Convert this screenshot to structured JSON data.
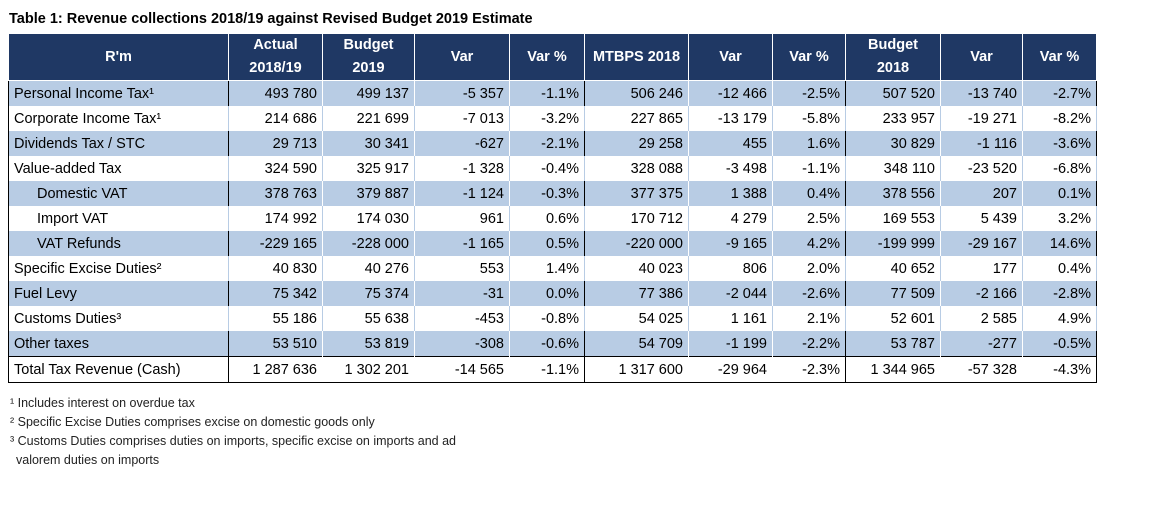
{
  "title": "Table 1: Revenue collections 2018/19 against Revised Budget 2019 Estimate",
  "table": {
    "header": [
      "R'm",
      "Actual 2018/19",
      "Budget 2019",
      "Var",
      "Var %",
      "MTBPS 2018",
      "Var",
      "Var %",
      "Budget 2018",
      "Var",
      "Var %"
    ],
    "rows": [
      [
        "Personal Income Tax¹",
        "493 780",
        "499 137",
        "-5 357",
        "-1.1%",
        "506 246",
        "-12 466",
        "-2.5%",
        "507 520",
        "-13 740",
        "-2.7%"
      ],
      [
        "Corporate Income Tax¹",
        "214 686",
        "221 699",
        "-7 013",
        "-3.2%",
        "227 865",
        "-13 179",
        "-5.8%",
        "233 957",
        "-19 271",
        "-8.2%"
      ],
      [
        "Dividends Tax / STC",
        "29 713",
        "30 341",
        "-627",
        "-2.1%",
        "29 258",
        "455",
        "1.6%",
        "30 829",
        "-1 116",
        "-3.6%"
      ],
      [
        "Value-added Tax",
        "324 590",
        "325 917",
        "-1 328",
        "-0.4%",
        "328 088",
        "-3 498",
        "-1.1%",
        "348 110",
        "-23 520",
        "-6.8%"
      ],
      [
        "Domestic VAT",
        "378 763",
        "379 887",
        "-1 124",
        "-0.3%",
        "377 375",
        "1 388",
        "0.4%",
        "378 556",
        "207",
        "0.1%"
      ],
      [
        "Import VAT",
        "174 992",
        "174 030",
        "961",
        "0.6%",
        "170 712",
        "4 279",
        "2.5%",
        "169 553",
        "5 439",
        "3.2%"
      ],
      [
        "VAT Refunds",
        "-229 165",
        "-228 000",
        "-1 165",
        "0.5%",
        "-220 000",
        "-9 165",
        "4.2%",
        "-199 999",
        "-29 167",
        "14.6%"
      ],
      [
        "Specific Excise Duties²",
        "40 830",
        "40 276",
        "553",
        "1.4%",
        "40 023",
        "806",
        "2.0%",
        "40 652",
        "177",
        "0.4%"
      ],
      [
        "Fuel Levy",
        "75 342",
        "75 374",
        "-31",
        "0.0%",
        "77 386",
        "-2 044",
        "-2.6%",
        "77 509",
        "-2 166",
        "-2.8%"
      ],
      [
        "Customs Duties³",
        "55 186",
        "55 638",
        "-453",
        "-0.8%",
        "54 025",
        "1 161",
        "2.1%",
        "52 601",
        "2 585",
        "4.9%"
      ],
      [
        "Other taxes",
        "53 510",
        "53 819",
        "-308",
        "-0.6%",
        "54 709",
        "-1 199",
        "-2.2%",
        "53 787",
        "-277",
        "-0.5%"
      ],
      [
        "Total Tax Revenue (Cash)",
        "1 287 636",
        "1 302 201",
        "-14 565",
        "-1.1%",
        "1 317 600",
        "-29 964",
        "-2.3%",
        "1 344 965",
        "-57 328",
        "-4.3%"
      ]
    ]
  },
  "footnotes": [
    "¹ Includes interest on overdue tax",
    "² Specific Excise Duties comprises excise on domestic goods only",
    "³ Customs Duties comprises duties on imports, specific excise on imports and ad",
    "valorem duties on imports"
  ]
}
